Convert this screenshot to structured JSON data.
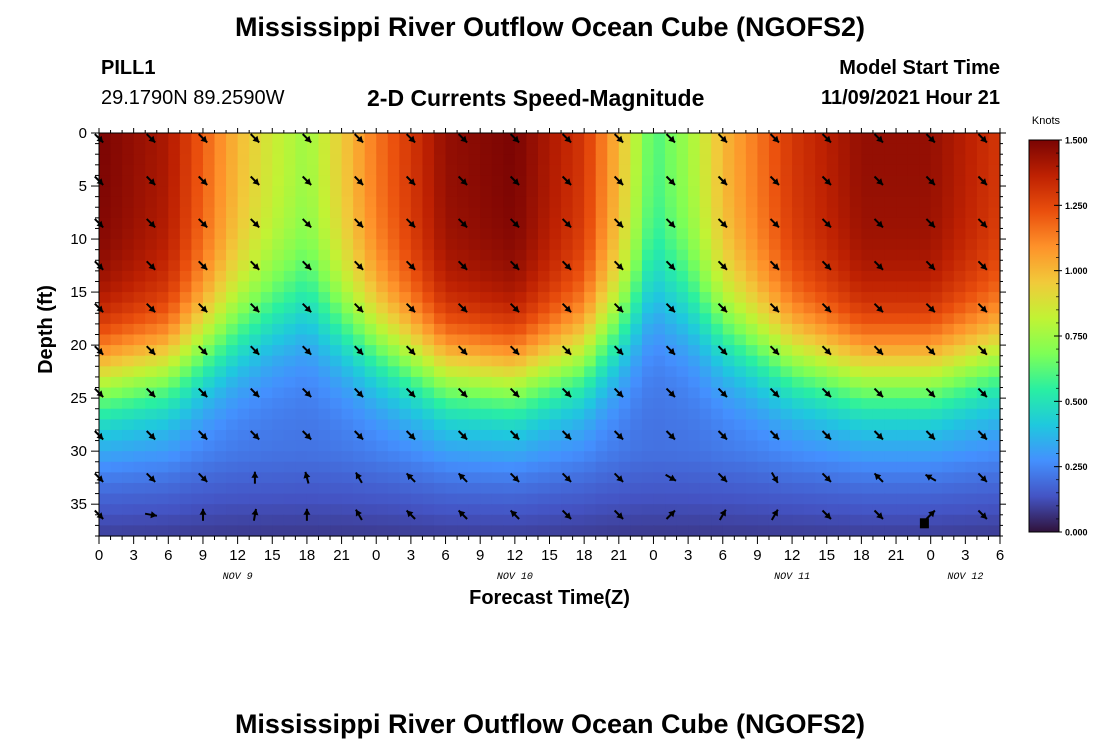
{
  "header": {
    "title": "Mississippi River Outflow Ocean Cube (NGOFS2)",
    "station": "PILL1",
    "coords": "29.1790N  89.2590W",
    "model_start_label": "Model Start Time",
    "model_start_value": "11/09/2021 Hour 21",
    "footer_title": "Mississippi River Outflow Ocean Cube (NGOFS2)"
  },
  "chart_data": {
    "type": "heatmap",
    "title": "2-D Currents Speed-Magnitude",
    "xlabel": "Forecast Time(Z)",
    "ylabel": "Depth (ft)",
    "x_hours": [
      0,
      78
    ],
    "x_tick_labels": [
      "0",
      "3",
      "6",
      "9",
      "12",
      "15",
      "18",
      "21",
      "0",
      "3",
      "6",
      "9",
      "12",
      "15",
      "18",
      "21",
      "0",
      "3",
      "6",
      "9",
      "12",
      "15",
      "18",
      "21",
      "0",
      "3",
      "6"
    ],
    "day_labels": [
      {
        "label": "NOV 9",
        "hour": 12
      },
      {
        "label": "NOV 10",
        "hour": 36
      },
      {
        "label": "NOV 11",
        "hour": 60
      },
      {
        "label": "NOV 12",
        "hour": 75
      }
    ],
    "ylim": [
      0,
      38
    ],
    "y_ticks": [
      0,
      5,
      10,
      15,
      20,
      25,
      30,
      35
    ],
    "colorbar": {
      "unit": "Knots",
      "range": [
        0,
        1.5
      ],
      "tick_labels": [
        "1.500",
        "1.250",
        "1.000",
        "0.750",
        "0.500",
        "0.250",
        "0.000"
      ],
      "colors": [
        "#30123b",
        "#4454c4",
        "#4490fe",
        "#1fc8de",
        "#29efa2",
        "#7dff56",
        "#c1f334",
        "#f1ca3a",
        "#fe922a",
        "#ea4f0d",
        "#be2102",
        "#7a0403"
      ]
    },
    "surface_speed_knots": [
      {
        "hour": 0,
        "value": 1.5
      },
      {
        "hour": 6,
        "value": 1.4
      },
      {
        "hour": 12,
        "value": 1.0
      },
      {
        "hour": 15,
        "value": 0.85
      },
      {
        "hour": 18,
        "value": 0.75
      },
      {
        "hour": 24,
        "value": 1.15
      },
      {
        "hour": 30,
        "value": 1.45
      },
      {
        "hour": 36,
        "value": 1.5
      },
      {
        "hour": 42,
        "value": 1.3
      },
      {
        "hour": 45,
        "value": 1.0
      },
      {
        "hour": 48,
        "value": 0.6
      },
      {
        "hour": 51,
        "value": 0.75
      },
      {
        "hour": 54,
        "value": 1.0
      },
      {
        "hour": 60,
        "value": 1.3
      },
      {
        "hour": 66,
        "value": 1.45
      },
      {
        "hour": 72,
        "value": 1.45
      },
      {
        "hour": 78,
        "value": 1.3
      }
    ],
    "vector_rows_ft": [
      0.5,
      4.5,
      8.5,
      12.5,
      16.5,
      20.5,
      24.5,
      28.5,
      32.5,
      36
    ],
    "vector_columns_hour": [
      0,
      4.5,
      9,
      13.5,
      18,
      22.5,
      27,
      31.5,
      36,
      40.5,
      45,
      49.5,
      54,
      58.5,
      63,
      67.5,
      72,
      76.5
    ],
    "vector_direction_deg": {
      "upper_rows": 135,
      "row_32": [
        135,
        135,
        135,
        0,
        345,
        330,
        315,
        315,
        135,
        135,
        135,
        120,
        135,
        150,
        135,
        315,
        300,
        135
      ],
      "row_36": [
        135,
        100,
        0,
        10,
        0,
        330,
        315,
        315,
        315,
        135,
        135,
        45,
        30,
        30,
        135,
        135,
        45,
        135
      ]
    },
    "marker": {
      "hour": 71.5,
      "depth_ft": 36.8
    }
  }
}
